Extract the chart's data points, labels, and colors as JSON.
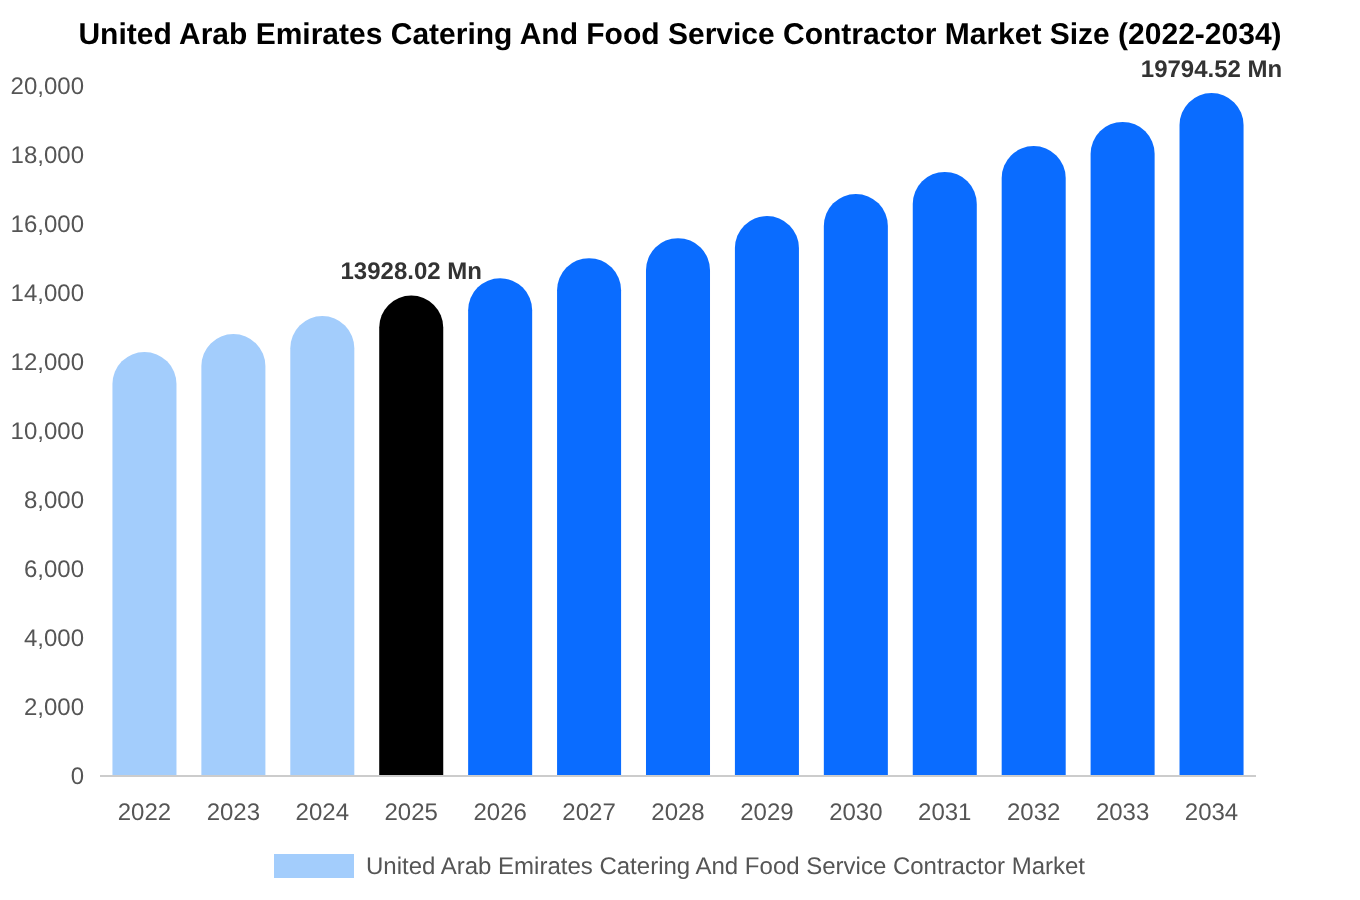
{
  "chart_data": {
    "type": "bar",
    "title": "United Arab Emirates Catering And Food Service Contractor Market Size (2022-2034)",
    "categories": [
      "2022",
      "2023",
      "2024",
      "2025",
      "2026",
      "2027",
      "2028",
      "2029",
      "2030",
      "2031",
      "2032",
      "2033",
      "2034"
    ],
    "series": [
      {
        "name": "United Arab Emirates Catering And Food Service Contractor Market",
        "color": "#a3cdfc",
        "colors": [
          "#a3cdfc",
          "#a3cdfc",
          "#a3cdfc",
          "#000000",
          "#0a6cff",
          "#0a6cff",
          "#0a6cff",
          "#0a6cff",
          "#0a6cff",
          "#0a6cff",
          "#0a6cff",
          "#0a6cff",
          "#0a6cff"
        ],
        "values": [
          12290,
          12810,
          13330,
          13928.02,
          14430,
          15010,
          15590,
          16230,
          16870,
          17510,
          18260,
          18960,
          19794.52
        ],
        "value_labels": [
          null,
          null,
          null,
          "13928.02 Mn",
          null,
          null,
          null,
          null,
          null,
          null,
          null,
          null,
          "19794.52 Mn"
        ]
      }
    ],
    "ylim": [
      0,
      20000
    ],
    "yticks": [
      {
        "value": 0,
        "label": "0"
      },
      {
        "value": 2000,
        "label": "2,000"
      },
      {
        "value": 4000,
        "label": "4,000"
      },
      {
        "value": 6000,
        "label": "6,000"
      },
      {
        "value": 8000,
        "label": "8,000"
      },
      {
        "value": 10000,
        "label": "10,000"
      },
      {
        "value": 12000,
        "label": "12,000"
      },
      {
        "value": 14000,
        "label": "14,000"
      },
      {
        "value": 16000,
        "label": "16,000"
      },
      {
        "value": 18000,
        "label": "18,000"
      },
      {
        "value": 20000,
        "label": "20,000"
      }
    ],
    "legend": "bottom"
  }
}
